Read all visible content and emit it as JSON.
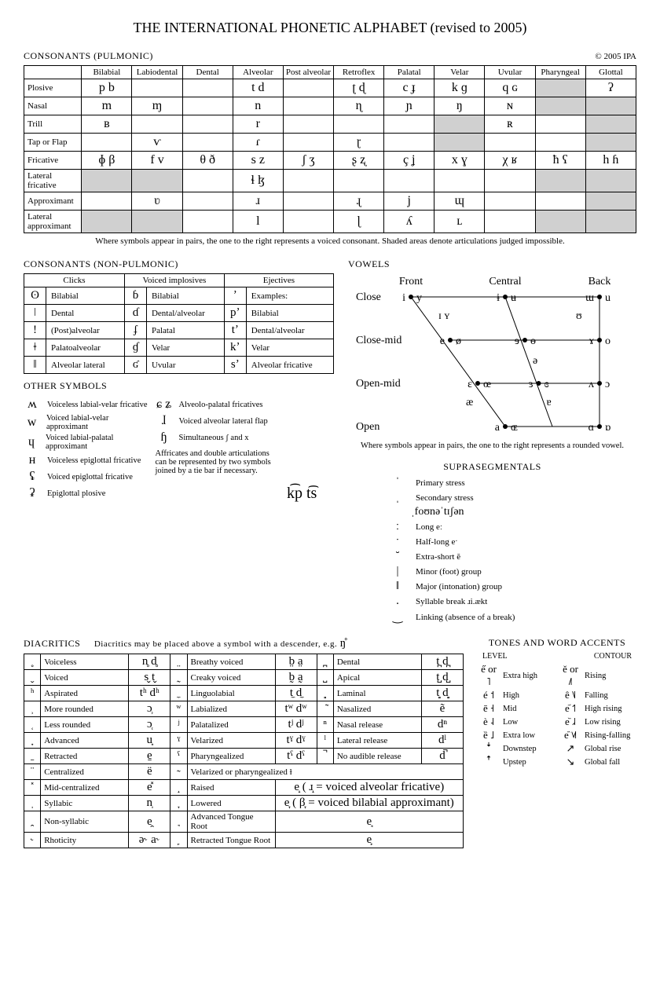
{
  "title": "THE INTERNATIONAL PHONETIC ALPHABET (revised to 2005)",
  "copyright": "© 2005 IPA",
  "sections": {
    "pulmonic": "CONSONANTS (PULMONIC)",
    "nonpulmonic": "CONSONANTS (NON-PULMONIC)",
    "vowels": "VOWELS",
    "other": "OTHER SYMBOLS",
    "diacritics_head": "DIACRITICS",
    "diacritics_sub": "Diacritics may be placed above a symbol with a descender, e.g.",
    "diacritics_ex": "ŋ̊",
    "supra": "SUPRASEGMENTALS",
    "tones": "TONES AND WORD ACCENTS"
  },
  "pulm_note": "Where symbols appear in pairs, the one to the right represents a voiced consonant. Shaded areas denote articulations judged impossible.",
  "places": [
    "Bilabial",
    "Labiodental",
    "Dental",
    "Alveolar",
    "Post alveolar",
    "Retroflex",
    "Palatal",
    "Velar",
    "Uvular",
    "Pharyngeal",
    "Glottal"
  ],
  "manners": [
    "Plosive",
    "Nasal",
    "Trill",
    "Tap or Flap",
    "Fricative",
    "Lateral fricative",
    "Approximant",
    "Lateral approximant"
  ],
  "pulm": [
    [
      "p  b",
      "",
      "",
      "t  d",
      "",
      "ʈ  ɖ",
      "c  ɟ",
      "k  ɡ",
      "q  ɢ",
      "#",
      "ʔ   "
    ],
    [
      "    m",
      "    ɱ",
      "",
      "    n",
      "",
      "    ɳ",
      "    ɲ",
      "    ŋ",
      "    ɴ",
      "#",
      "#"
    ],
    [
      "    ʙ",
      "",
      "",
      "    r",
      "",
      "",
      "",
      "#",
      "    ʀ",
      "",
      "#"
    ],
    [
      "",
      "    ⱱ",
      "",
      "    ɾ",
      "",
      "    ɽ",
      "",
      "#",
      "",
      "",
      "#"
    ],
    [
      "ɸ  β",
      "f  v",
      "θ  ð",
      "s  z",
      "ʃ  ʒ",
      "ʂ  ʐ",
      "ç  ʝ",
      "x  ɣ",
      "χ  ʁ",
      "ħ  ʕ",
      "h  ɦ"
    ],
    [
      "#",
      "#",
      "",
      "ɬ  ɮ",
      "",
      "",
      "",
      "",
      "",
      "#",
      "#"
    ],
    [
      "",
      "    ʋ",
      "",
      "    ɹ",
      "",
      "    ɻ",
      "    j",
      "    ɰ",
      "",
      "",
      "#"
    ],
    [
      "#",
      "#",
      "",
      "    l",
      "",
      "    ɭ",
      "    ʎ",
      "    ʟ",
      "",
      "#",
      "#"
    ]
  ],
  "np_head": [
    "Clicks",
    "Voiced implosives",
    "Ejectives"
  ],
  "np_rows": [
    [
      "ʘ",
      "Bilabial",
      "ɓ",
      "Bilabial",
      "ʼ",
      "Examples:"
    ],
    [
      "ǀ",
      "Dental",
      "ɗ",
      "Dental/alveolar",
      "pʼ",
      "Bilabial"
    ],
    [
      "ǃ",
      "(Post)alveolar",
      "ʄ",
      "Palatal",
      "tʼ",
      "Dental/alveolar"
    ],
    [
      "ǂ",
      "Palatoalveolar",
      "ɠ",
      "Velar",
      "kʼ",
      "Velar"
    ],
    [
      "ǁ",
      "Alveolar lateral",
      "ʛ",
      "Uvular",
      "sʼ",
      "Alveolar fricative"
    ]
  ],
  "other_left": [
    [
      "ʍ",
      "Voiceless labial-velar fricative"
    ],
    [
      "w",
      "Voiced labial-velar approximant"
    ],
    [
      "ɥ",
      "Voiced labial-palatal approximant"
    ],
    [
      "ʜ",
      "Voiceless epiglottal fricative"
    ],
    [
      "ʢ",
      "Voiced epiglottal fricative"
    ],
    [
      "ʡ",
      "Epiglottal plosive"
    ]
  ],
  "other_right": [
    [
      "ɕ ʑ",
      "Alveolo-palatal fricatives"
    ],
    [
      "ɺ",
      "Voiced alveolar lateral flap"
    ],
    [
      "ɧ",
      "Simultaneous  ʃ  and  x"
    ]
  ],
  "aff_note": "Affricates and double articulations can be represented by two symbols joined by a tie bar if necessary.",
  "aff_ex": "k͡p   t͡s",
  "vowel_labels": {
    "front": "Front",
    "central": "Central",
    "back": "Back",
    "close": "Close",
    "closemid": "Close-mid",
    "openmid": "Open-mid",
    "open": "Open"
  },
  "vowel_note": "Where symbols appear in pairs, the one to the right represents a rounded vowel.",
  "vowels": {
    "iy": "i   y",
    "uibar": "ɨ   ʉ",
    "uiu": "ɯ   u",
    "IY": "ɪ ʏ",
    "U": "ʊ",
    "eo": "e   ø",
    "reve": "ɘ   ɵ",
    "ramshorn": "ɤ   o",
    "schwa": "ə",
    "eopenoe": "ɛ   œ",
    "revE": "ɜ   ɞ",
    "caretopeno": "ʌ   ɔ",
    "ae": "æ",
    "turneda": "ɐ",
    "aOE": "a   ɶ",
    "alphaD": "ɑ   ɒ"
  },
  "supra": [
    [
      "ˈ",
      "Primary stress"
    ],
    [
      "ˌ",
      "Secondary stress"
    ],
    [
      "",
      "ˌfoʊnəˈtɪʃən"
    ],
    [
      "ː",
      "Long          eː"
    ],
    [
      "ˑ",
      "Half-long    eˑ"
    ],
    [
      "  ̆",
      "Extra-short   ĕ"
    ],
    [
      "|",
      "Minor (foot) group"
    ],
    [
      "‖",
      "Major (intonation) group"
    ],
    [
      ".",
      "Syllable break   ɹi.ækt"
    ],
    [
      "‿",
      "Linking (absence of a break)"
    ]
  ],
  "tones_level": [
    [
      "e̋ or ˥",
      "Extra high"
    ],
    [
      "é   ˦",
      "High"
    ],
    [
      "ē   ˧",
      "Mid"
    ],
    [
      "è   ˨",
      "Low"
    ],
    [
      "ȅ   ˩",
      "Extra low"
    ],
    [
      "ꜜ",
      "Downstep"
    ],
    [
      "ꜛ",
      "Upstep"
    ]
  ],
  "tones_contour": [
    [
      "ě or ˩˥",
      "Rising"
    ],
    [
      "ê   ˥˩",
      "Falling"
    ],
    [
      "e᷄   ˦˥",
      "High rising"
    ],
    [
      "e᷅   ˩˨",
      "Low rising"
    ],
    [
      "e᷈   ˦˩˦",
      "Rising-falling"
    ],
    [
      "↗",
      "Global rise"
    ],
    [
      "↘",
      "Global fall"
    ]
  ],
  "tones_head": {
    "level": "LEVEL",
    "contour": "CONTOUR"
  },
  "diac": [
    [
      " ̥",
      "Voiceless",
      "n̥  d̥",
      " ̤",
      "Breathy voiced",
      "b̤  a̤",
      " ̪",
      "Dental",
      "t̪  d̪"
    ],
    [
      " ̬",
      "Voiced",
      "s̬  t̬",
      " ̰",
      "Creaky voiced",
      "b̰  a̰",
      " ̺",
      "Apical",
      "t̺  d̺"
    ],
    [
      "ʰ",
      "Aspirated",
      "tʰ dʰ",
      " ̼",
      "Linguolabial",
      "t̼  d̼",
      " ̻",
      "Laminal",
      "t̻  d̻"
    ],
    [
      " ̹",
      "More rounded",
      "ɔ̹",
      "ʷ",
      "Labialized",
      "tʷ dʷ",
      " ̃",
      "Nasalized",
      "ẽ"
    ],
    [
      " ̜",
      "Less rounded",
      "ɔ̜",
      "ʲ",
      "Palatalized",
      "tʲ dʲ",
      "ⁿ",
      "Nasal release",
      "dⁿ"
    ],
    [
      " ̟",
      "Advanced",
      "u̟",
      "ˠ",
      "Velarized",
      "tˠ dˠ",
      "ˡ",
      "Lateral release",
      "dˡ"
    ],
    [
      " ̠",
      "Retracted",
      "e̠",
      "ˤ",
      "Pharyngealized",
      "tˤ dˤ",
      " ̚",
      "No audible release",
      "d̚"
    ],
    [
      " ̈",
      "Centralized",
      "ë",
      " ̴",
      "Velarized or pharyngealized     ɫ",
      "",
      "",
      "",
      ""
    ],
    [
      " ̽",
      "Mid-centralized",
      "e̽",
      " ̝",
      "Raised",
      "e̝   ( ɹ̝ = voiced alveolar fricative)",
      "",
      "",
      ""
    ],
    [
      " ̩",
      "Syllabic",
      "n̩",
      " ̞",
      "Lowered",
      "e̞   ( β̞ = voiced bilabial approximant)",
      "",
      "",
      ""
    ],
    [
      " ̯",
      "Non-syllabic",
      "e̯",
      " ̘",
      "Advanced Tongue Root",
      "e̘",
      "",
      "",
      ""
    ],
    [
      "˞",
      "Rhoticity",
      "ə˞  a˞",
      " ̙",
      "Retracted Tongue Root",
      "e̙",
      "",
      "",
      ""
    ]
  ]
}
